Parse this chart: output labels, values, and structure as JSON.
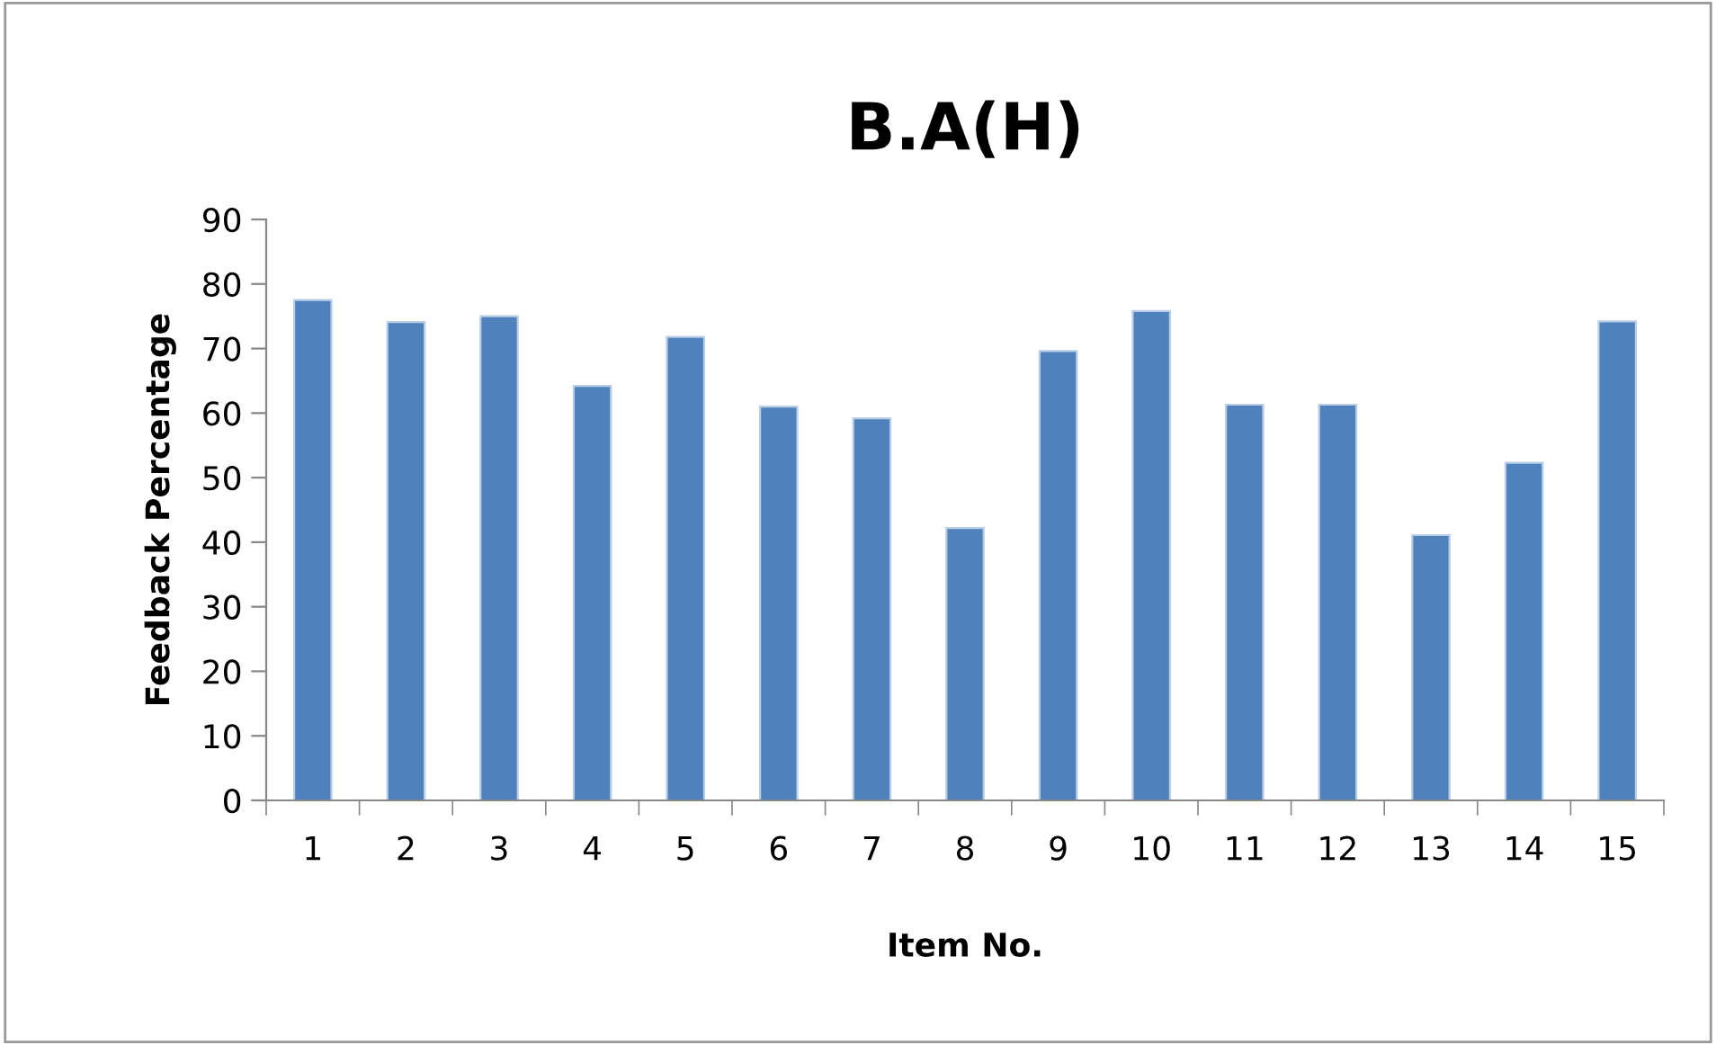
{
  "chart_data": {
    "type": "bar",
    "title": "B.A(H)",
    "xlabel": "Item No.",
    "ylabel": "Feedback Percentage",
    "categories": [
      "1",
      "2",
      "3",
      "4",
      "5",
      "6",
      "7",
      "8",
      "9",
      "10",
      "11",
      "12",
      "13",
      "14",
      "15"
    ],
    "values": [
      77.5,
      74.1,
      75.0,
      64.2,
      71.8,
      61.0,
      59.2,
      42.2,
      69.6,
      75.8,
      61.3,
      61.3,
      41.1,
      52.3,
      74.2
    ],
    "color": "#4f81bd",
    "ylim": [
      0,
      90
    ],
    "yticks": [
      0,
      10,
      20,
      30,
      40,
      50,
      60,
      70,
      80,
      90
    ],
    "grid": false,
    "legend": false
  }
}
